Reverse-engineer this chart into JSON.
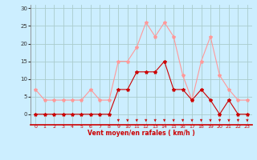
{
  "hours": [
    0,
    1,
    2,
    3,
    4,
    5,
    6,
    7,
    8,
    9,
    10,
    11,
    12,
    13,
    14,
    15,
    16,
    17,
    18,
    19,
    20,
    21,
    22,
    23
  ],
  "wind_avg": [
    0,
    0,
    0,
    0,
    0,
    0,
    0,
    0,
    0,
    7,
    7,
    12,
    12,
    12,
    15,
    7,
    7,
    4,
    7,
    4,
    0,
    4,
    0,
    0
  ],
  "wind_gust": [
    7,
    4,
    4,
    4,
    4,
    4,
    7,
    4,
    4,
    15,
    15,
    19,
    26,
    22,
    26,
    22,
    11,
    4,
    15,
    22,
    11,
    7,
    4,
    4
  ],
  "bg_color": "#cceeff",
  "grid_color": "#aacccc",
  "avg_color": "#cc0000",
  "gust_color": "#ff9999",
  "xlabel": "Vent moyen/en rafales ( km/h )",
  "xlabel_color": "#cc0000",
  "yticks": [
    0,
    5,
    10,
    15,
    20,
    25,
    30
  ],
  "ylim": [
    -3,
    31
  ],
  "xlim": [
    -0.5,
    23.5
  ],
  "arrow_hours": [
    9,
    10,
    11,
    12,
    13,
    14,
    15,
    16,
    17,
    18,
    19,
    20,
    21,
    22,
    23
  ]
}
